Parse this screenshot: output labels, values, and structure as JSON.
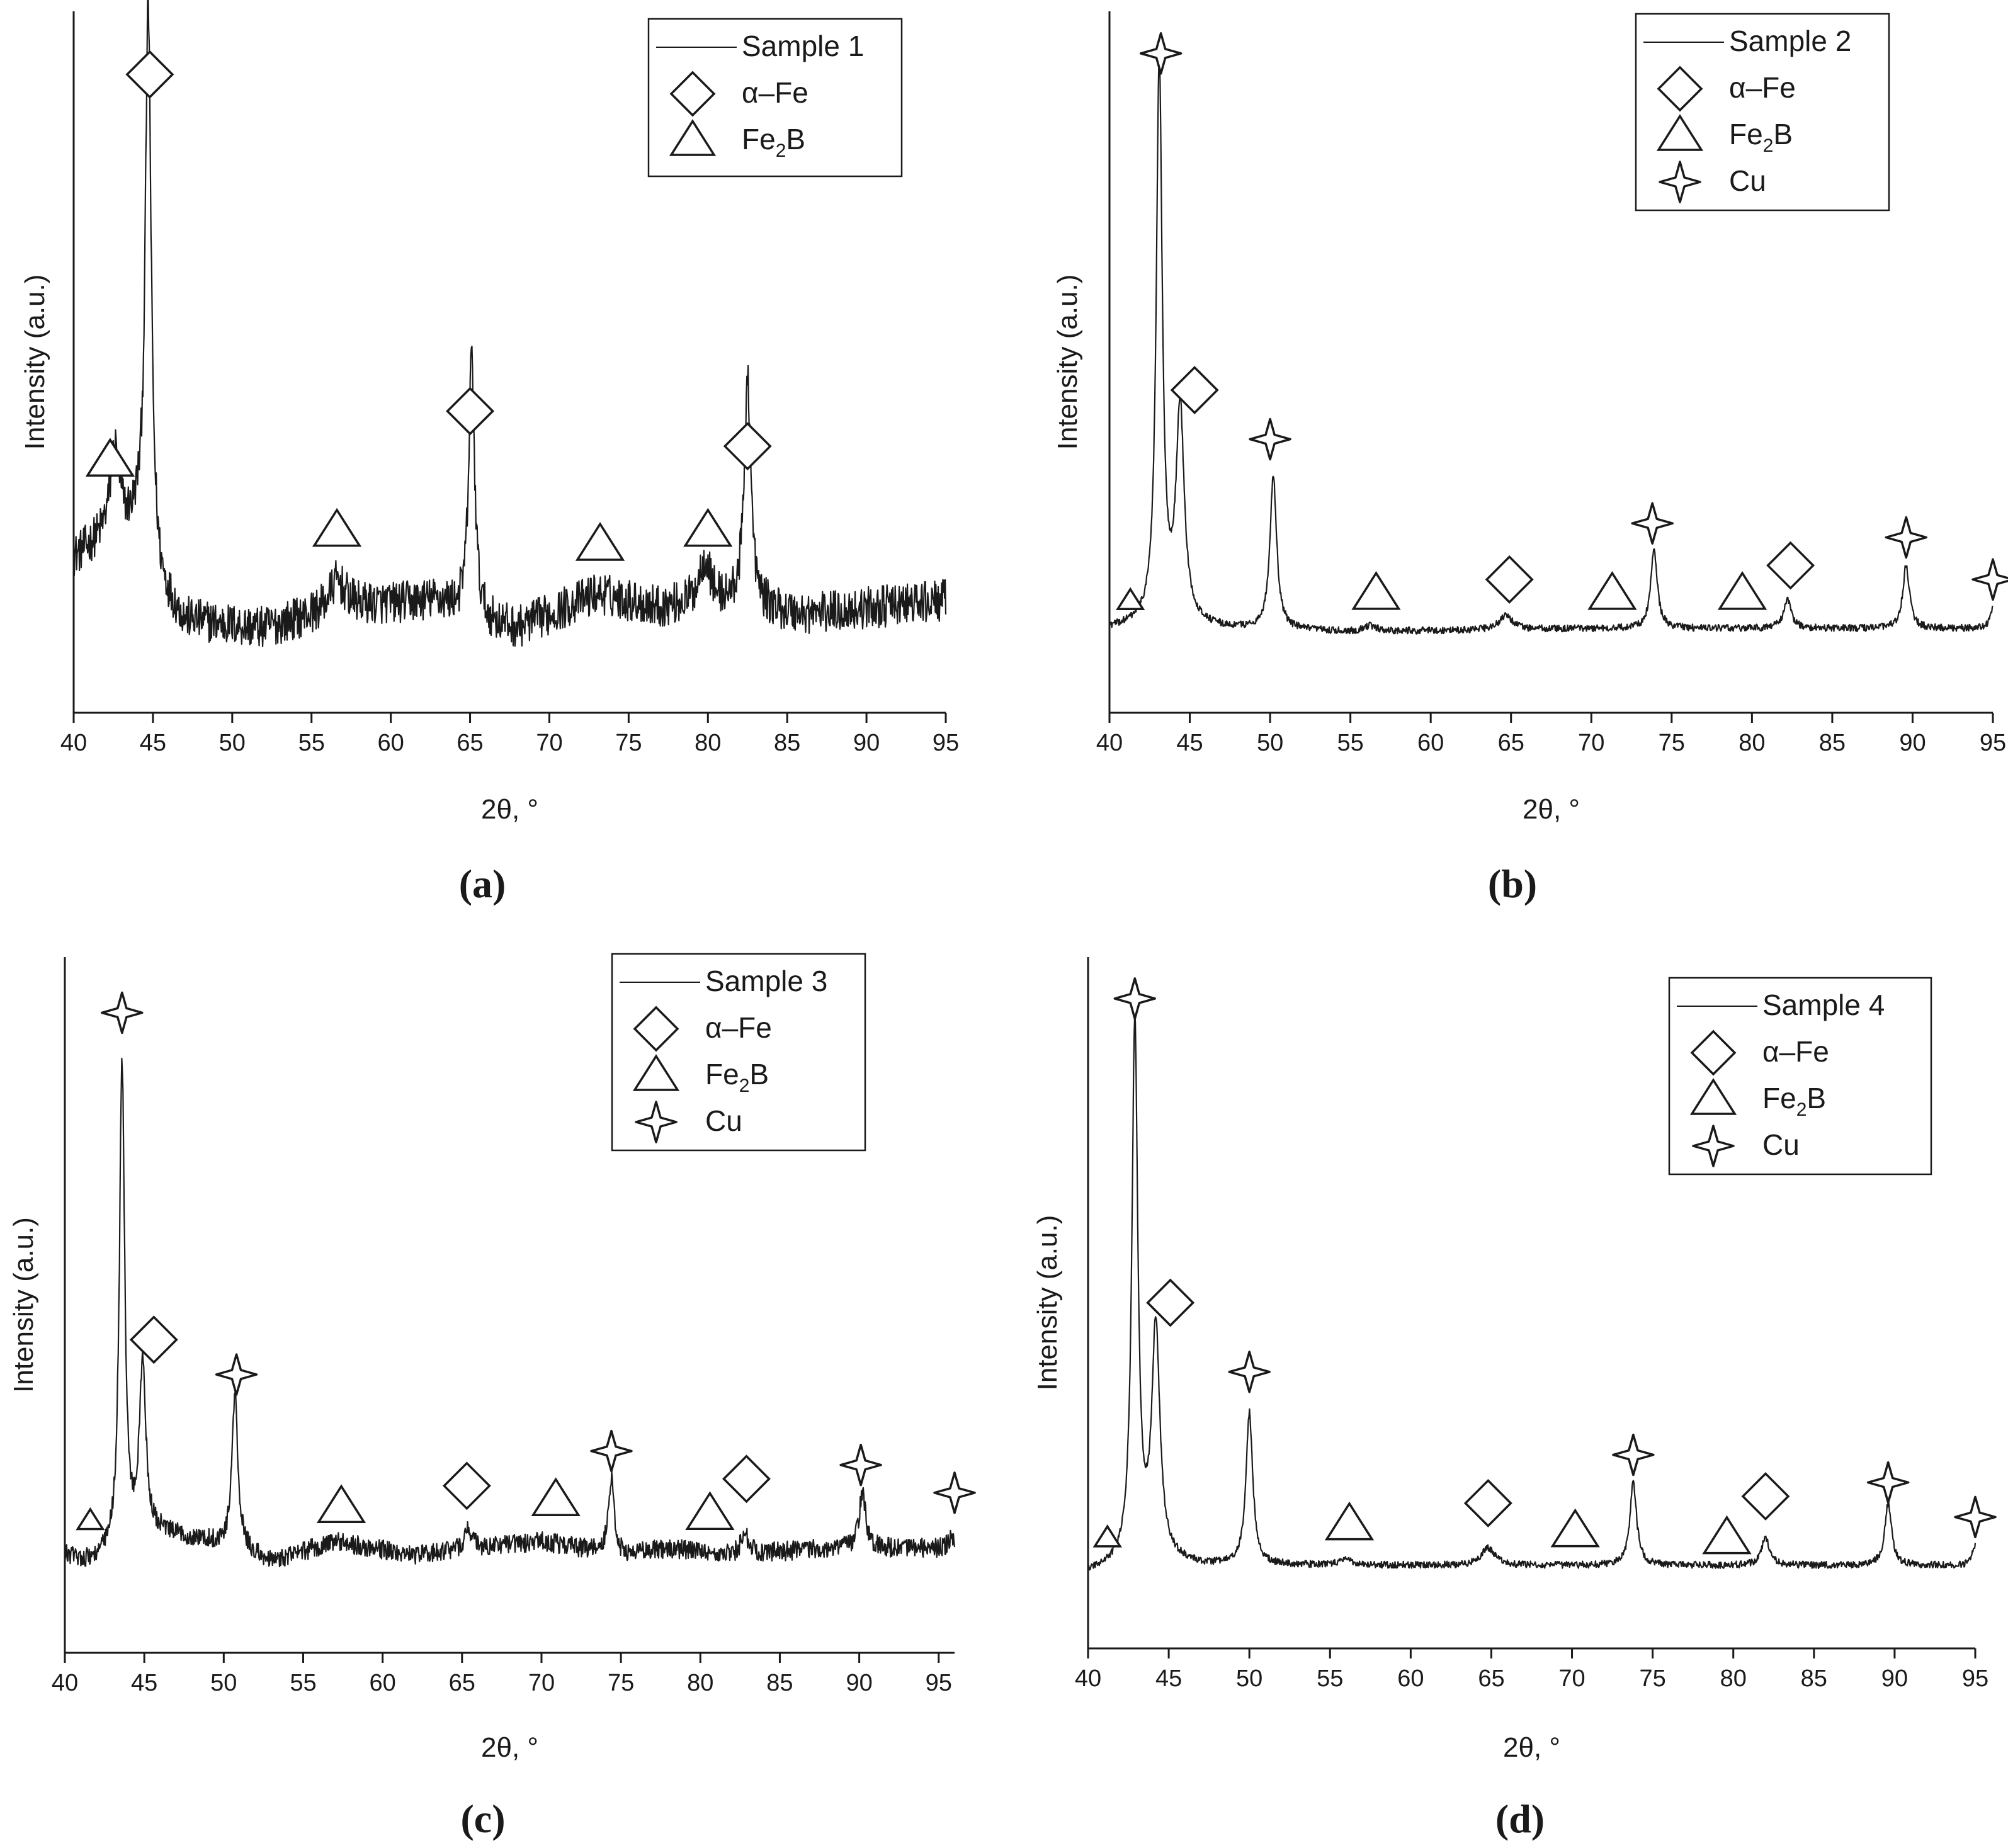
{
  "figure": {
    "caption_labels": [
      "(a)",
      "(b)",
      "(c)",
      "(d)"
    ],
    "x_axis_label": "2θ, °",
    "y_axis_label": "Intensity (a.u.)"
  },
  "legend_phases": {
    "alpha_fe": "α–Fe",
    "fe2b": "Fe2B",
    "cu": "Cu"
  },
  "chart_data": [
    {
      "type": "line",
      "panel": "(a)",
      "series_name": "Sample 1",
      "xlabel": "2θ, °",
      "ylabel": "Intensity (a.u.)",
      "xlim": [
        40,
        95
      ],
      "xticks": [
        40,
        45,
        50,
        55,
        60,
        65,
        70,
        75,
        80,
        85,
        90,
        95
      ],
      "ylim": [
        0,
        100
      ],
      "legend_entries": [
        "Sample 1",
        "α–Fe",
        "Fe2B"
      ],
      "background": [
        [
          40,
          22
        ],
        [
          42,
          25
        ],
        [
          44,
          26
        ],
        [
          45.5,
          17
        ],
        [
          47,
          13
        ],
        [
          52,
          12
        ],
        [
          57,
          15
        ],
        [
          63,
          16
        ],
        [
          66,
          13
        ],
        [
          68,
          12
        ],
        [
          73,
          17
        ],
        [
          77,
          15
        ],
        [
          80,
          16
        ],
        [
          86,
          14
        ],
        [
          95,
          16
        ]
      ],
      "noise": 3.0,
      "peaks": [
        {
          "x": 42.6,
          "height": 12,
          "width": 0.35
        },
        {
          "x": 44.7,
          "height": 79,
          "width": 0.22
        },
        {
          "x": 56.6,
          "height": 4,
          "width": 0.6
        },
        {
          "x": 65.1,
          "height": 37,
          "width": 0.22
        },
        {
          "x": 79.8,
          "height": 6,
          "width": 0.4
        },
        {
          "x": 82.5,
          "height": 33,
          "width": 0.25
        }
      ],
      "markers": [
        {
          "phase": "fe2b",
          "x": 42.3,
          "y": 36
        },
        {
          "phase": "alpha_fe",
          "x": 44.8,
          "y": 91
        },
        {
          "phase": "fe2b",
          "x": 56.6,
          "y": 26
        },
        {
          "phase": "alpha_fe",
          "x": 65.0,
          "y": 43
        },
        {
          "phase": "fe2b",
          "x": 73.2,
          "y": 24
        },
        {
          "phase": "fe2b",
          "x": 80.0,
          "y": 26
        },
        {
          "phase": "alpha_fe",
          "x": 82.5,
          "y": 38
        }
      ]
    },
    {
      "type": "line",
      "panel": "(b)",
      "series_name": "Sample 2",
      "xlabel": "2θ, °",
      "ylabel": "Intensity (a.u.)",
      "xlim": [
        40,
        95
      ],
      "xticks": [
        40,
        45,
        50,
        55,
        60,
        65,
        70,
        75,
        80,
        85,
        90,
        95
      ],
      "ylim": [
        0,
        100
      ],
      "legend_entries": [
        "Sample 2",
        "α–Fe",
        "Fe2B",
        "Cu"
      ],
      "background": [
        [
          40,
          12
        ],
        [
          42,
          12.5
        ],
        [
          44,
          13
        ],
        [
          47,
          12
        ],
        [
          55,
          11.5
        ],
        [
          70,
          12
        ],
        [
          95,
          12
        ]
      ],
      "noise": 0.5,
      "peaks": [
        {
          "x": 43.1,
          "height": 80,
          "width": 0.22
        },
        {
          "x": 44.4,
          "height": 30,
          "width": 0.3
        },
        {
          "x": 50.2,
          "height": 22,
          "width": 0.25
        },
        {
          "x": 56.2,
          "height": 0.8,
          "width": 0.5
        },
        {
          "x": 64.7,
          "height": 2.0,
          "width": 0.5
        },
        {
          "x": 73.9,
          "height": 11,
          "width": 0.25
        },
        {
          "x": 82.2,
          "height": 4,
          "width": 0.3
        },
        {
          "x": 89.6,
          "height": 9,
          "width": 0.25
        },
        {
          "x": 95.0,
          "height": 3,
          "width": 0.2
        }
      ],
      "markers": [
        {
          "phase": "cu",
          "x": 43.2,
          "y": 94
        },
        {
          "phase": "alpha_fe",
          "x": 45.3,
          "y": 46
        },
        {
          "phase": "cu",
          "x": 50.0,
          "y": 39
        },
        {
          "phase": "fe2b",
          "x": 41.3,
          "y": 16,
          "small": true
        },
        {
          "phase": "fe2b",
          "x": 56.6,
          "y": 17
        },
        {
          "phase": "alpha_fe",
          "x": 64.9,
          "y": 19
        },
        {
          "phase": "fe2b",
          "x": 71.3,
          "y": 17
        },
        {
          "phase": "cu",
          "x": 73.8,
          "y": 27
        },
        {
          "phase": "fe2b",
          "x": 79.4,
          "y": 17
        },
        {
          "phase": "alpha_fe",
          "x": 82.4,
          "y": 21
        },
        {
          "phase": "cu",
          "x": 89.6,
          "y": 25
        },
        {
          "phase": "cu",
          "x": 95.0,
          "y": 19
        }
      ]
    },
    {
      "type": "line",
      "panel": "(c)",
      "series_name": "Sample 3",
      "xlabel": "2θ, °",
      "ylabel": "Intensity (a.u.)",
      "xlim": [
        40,
        96
      ],
      "xticks": [
        40,
        45,
        50,
        55,
        60,
        65,
        70,
        75,
        80,
        85,
        90,
        95
      ],
      "ylim": [
        0,
        100
      ],
      "legend_entries": [
        "Sample 3",
        "α–Fe",
        "Fe2B",
        "Cu"
      ],
      "background": [
        [
          40,
          14
        ],
        [
          41.5,
          13
        ],
        [
          43,
          14
        ],
        [
          46,
          17
        ],
        [
          49,
          16
        ],
        [
          51,
          15
        ],
        [
          53,
          13
        ],
        [
          57,
          16
        ],
        [
          62,
          14
        ],
        [
          66,
          15
        ],
        [
          70,
          16
        ],
        [
          75,
          14
        ],
        [
          78,
          15
        ],
        [
          82,
          14
        ],
        [
          88,
          15
        ],
        [
          96,
          15
        ]
      ],
      "noise": 1.4,
      "peaks": [
        {
          "x": 43.6,
          "height": 70,
          "width": 0.2
        },
        {
          "x": 44.9,
          "height": 25,
          "width": 0.25
        },
        {
          "x": 50.7,
          "height": 22,
          "width": 0.22
        },
        {
          "x": 65.4,
          "height": 3,
          "width": 0.3
        },
        {
          "x": 74.4,
          "height": 11,
          "width": 0.22
        },
        {
          "x": 82.8,
          "height": 3,
          "width": 0.3
        },
        {
          "x": 90.2,
          "height": 8,
          "width": 0.25
        },
        {
          "x": 95.8,
          "height": 2,
          "width": 0.2
        }
      ],
      "markers": [
        {
          "phase": "cu",
          "x": 43.6,
          "y": 92
        },
        {
          "phase": "alpha_fe",
          "x": 45.6,
          "y": 45
        },
        {
          "phase": "cu",
          "x": 50.8,
          "y": 40
        },
        {
          "phase": "fe2b",
          "x": 41.6,
          "y": 19,
          "small": true
        },
        {
          "phase": "fe2b",
          "x": 57.4,
          "y": 21
        },
        {
          "phase": "alpha_fe",
          "x": 65.3,
          "y": 24
        },
        {
          "phase": "fe2b",
          "x": 70.9,
          "y": 22
        },
        {
          "phase": "cu",
          "x": 74.4,
          "y": 29
        },
        {
          "phase": "fe2b",
          "x": 80.6,
          "y": 20
        },
        {
          "phase": "alpha_fe",
          "x": 82.9,
          "y": 25
        },
        {
          "phase": "cu",
          "x": 90.1,
          "y": 27
        },
        {
          "phase": "cu",
          "x": 96.0,
          "y": 23
        }
      ]
    },
    {
      "type": "line",
      "panel": "(d)",
      "series_name": "Sample 4",
      "xlabel": "2θ, °",
      "ylabel": "Intensity (a.u.)",
      "xlim": [
        40,
        95
      ],
      "xticks": [
        40,
        45,
        50,
        55,
        60,
        65,
        70,
        75,
        80,
        85,
        90,
        95
      ],
      "ylim": [
        0,
        100
      ],
      "legend_entries": [
        "Sample 4",
        "α–Fe",
        "Fe2B",
        "Cu"
      ],
      "background": [
        [
          40,
          11
        ],
        [
          42,
          12
        ],
        [
          44,
          13
        ],
        [
          47,
          12
        ],
        [
          55,
          12
        ],
        [
          70,
          12
        ],
        [
          95,
          12
        ]
      ],
      "noise": 0.5,
      "peaks": [
        {
          "x": 42.9,
          "height": 78,
          "width": 0.22
        },
        {
          "x": 44.2,
          "height": 33,
          "width": 0.3
        },
        {
          "x": 50.0,
          "height": 22,
          "width": 0.25
        },
        {
          "x": 56.0,
          "height": 0.8,
          "width": 0.5
        },
        {
          "x": 64.8,
          "height": 2.5,
          "width": 0.5
        },
        {
          "x": 73.8,
          "height": 12,
          "width": 0.25
        },
        {
          "x": 82.0,
          "height": 4,
          "width": 0.3
        },
        {
          "x": 89.6,
          "height": 9,
          "width": 0.25
        },
        {
          "x": 95.0,
          "height": 3,
          "width": 0.2
        }
      ],
      "markers": [
        {
          "phase": "cu",
          "x": 42.9,
          "y": 94
        },
        {
          "phase": "alpha_fe",
          "x": 45.1,
          "y": 50
        },
        {
          "phase": "cu",
          "x": 50.0,
          "y": 40
        },
        {
          "phase": "fe2b",
          "x": 41.2,
          "y": 16,
          "small": true
        },
        {
          "phase": "fe2b",
          "x": 56.2,
          "y": 18
        },
        {
          "phase": "alpha_fe",
          "x": 64.8,
          "y": 21
        },
        {
          "phase": "fe2b",
          "x": 70.2,
          "y": 17
        },
        {
          "phase": "cu",
          "x": 73.8,
          "y": 28
        },
        {
          "phase": "fe2b",
          "x": 79.6,
          "y": 16
        },
        {
          "phase": "alpha_fe",
          "x": 82.0,
          "y": 22
        },
        {
          "phase": "cu",
          "x": 89.6,
          "y": 24
        },
        {
          "phase": "cu",
          "x": 95.0,
          "y": 19
        }
      ]
    }
  ]
}
